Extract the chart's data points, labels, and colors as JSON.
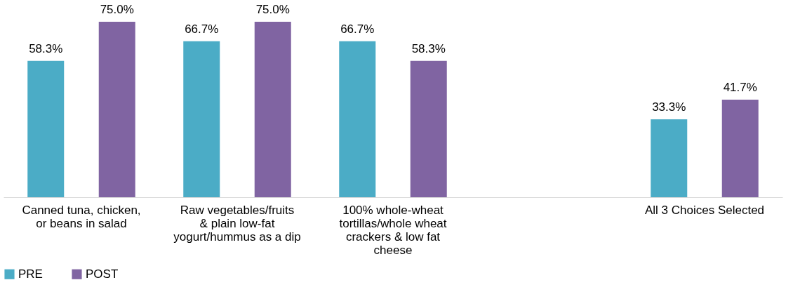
{
  "chart_data": {
    "type": "bar",
    "categories": [
      "Canned tuna, chicken, or beans in salad",
      "Raw vegetables/fruits & plain low-fat yogurt/hummus as a dip",
      "100% whole-wheat tortillas/whole wheat crackers & low fat cheese",
      null,
      "All 3 Choices Selected"
    ],
    "series": [
      {
        "name": "PRE",
        "color": "#4bacc6",
        "values": [
          58.3,
          66.7,
          66.7,
          null,
          33.3
        ],
        "value_labels": [
          "58.3%",
          "66.7%",
          "66.7%",
          null,
          "33.3%"
        ]
      },
      {
        "name": "POST",
        "color": "#8064a2",
        "values": [
          75.0,
          75.0,
          58.3,
          null,
          41.7
        ],
        "value_labels": [
          "75.0%",
          "75.0%",
          "58.3%",
          null,
          "41.7%"
        ]
      }
    ],
    "legend": "bottom",
    "grid": false
  }
}
